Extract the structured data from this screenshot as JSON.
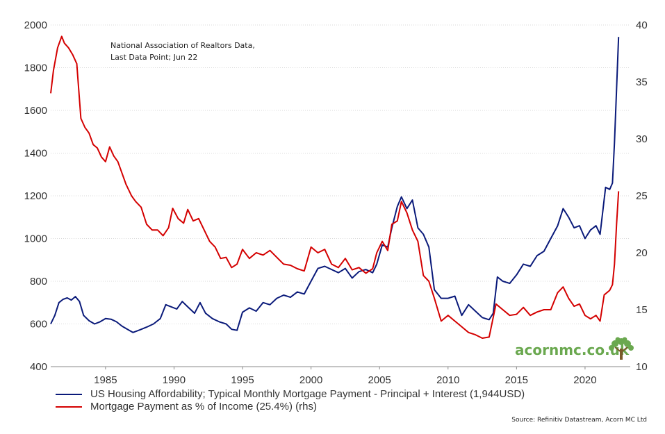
{
  "chart_data": {
    "type": "line",
    "annotation": [
      "National Association of Realtors Data,",
      "Last Data Point; Jun 22"
    ],
    "source": "Source: Refinitiv Datastream, Acorn MC Ltd",
    "xlim": [
      1981.0,
      2023.3
    ],
    "x_ticks": [
      "1985",
      "1990",
      "1995",
      "2000",
      "2005",
      "2010",
      "2015",
      "2020"
    ],
    "y_left": {
      "lim": [
        400,
        2000
      ],
      "ticks": [
        "400",
        "600",
        "800",
        "1000",
        "1200",
        "1400",
        "1600",
        "1800",
        "2000"
      ]
    },
    "y_right": {
      "lim": [
        10,
        40
      ],
      "ticks": [
        "10",
        "15",
        "20",
        "25",
        "30",
        "35",
        "40"
      ]
    },
    "grid": true,
    "legend_position": "bottom-left",
    "series": [
      {
        "name": "US Housing Affordability; Typical Monthly Mortgage Payment - Principal + Interest (1,944USD)",
        "axis": "left",
        "color": "#0a1a7a",
        "points": [
          [
            1981.0,
            600
          ],
          [
            1981.3,
            640
          ],
          [
            1981.6,
            700
          ],
          [
            1981.9,
            715
          ],
          [
            1982.2,
            722
          ],
          [
            1982.5,
            712
          ],
          [
            1982.8,
            728
          ],
          [
            1983.1,
            705
          ],
          [
            1983.4,
            640
          ],
          [
            1983.8,
            615
          ],
          [
            1984.2,
            600
          ],
          [
            1984.6,
            610
          ],
          [
            1985.0,
            625
          ],
          [
            1985.4,
            622
          ],
          [
            1985.8,
            610
          ],
          [
            1986.2,
            590
          ],
          [
            1986.6,
            575
          ],
          [
            1987.0,
            560
          ],
          [
            1987.5,
            572
          ],
          [
            1988.0,
            585
          ],
          [
            1988.5,
            600
          ],
          [
            1989.0,
            625
          ],
          [
            1989.4,
            690
          ],
          [
            1989.8,
            680
          ],
          [
            1990.2,
            670
          ],
          [
            1990.6,
            705
          ],
          [
            1991.0,
            680
          ],
          [
            1991.5,
            650
          ],
          [
            1991.9,
            700
          ],
          [
            1992.3,
            650
          ],
          [
            1992.8,
            625
          ],
          [
            1993.3,
            610
          ],
          [
            1993.8,
            600
          ],
          [
            1994.2,
            575
          ],
          [
            1994.6,
            570
          ],
          [
            1995.0,
            655
          ],
          [
            1995.5,
            675
          ],
          [
            1996.0,
            660
          ],
          [
            1996.5,
            700
          ],
          [
            1997.0,
            690
          ],
          [
            1997.5,
            720
          ],
          [
            1998.0,
            735
          ],
          [
            1998.5,
            725
          ],
          [
            1999.0,
            750
          ],
          [
            1999.5,
            740
          ],
          [
            2000.0,
            800
          ],
          [
            2000.5,
            860
          ],
          [
            2001.0,
            870
          ],
          [
            2001.5,
            855
          ],
          [
            2002.0,
            840
          ],
          [
            2002.5,
            860
          ],
          [
            2003.0,
            815
          ],
          [
            2003.5,
            845
          ],
          [
            2004.0,
            855
          ],
          [
            2004.5,
            840
          ],
          [
            2004.8,
            880
          ],
          [
            2005.2,
            970
          ],
          [
            2005.6,
            960
          ],
          [
            2005.9,
            1050
          ],
          [
            2006.3,
            1150
          ],
          [
            2006.6,
            1195
          ],
          [
            2007.0,
            1140
          ],
          [
            2007.4,
            1180
          ],
          [
            2007.8,
            1050
          ],
          [
            2008.2,
            1020
          ],
          [
            2008.6,
            960
          ],
          [
            2009.0,
            760
          ],
          [
            2009.5,
            720
          ],
          [
            2010.0,
            720
          ],
          [
            2010.5,
            730
          ],
          [
            2011.0,
            640
          ],
          [
            2011.5,
            690
          ],
          [
            2012.0,
            660
          ],
          [
            2012.5,
            630
          ],
          [
            2013.0,
            620
          ],
          [
            2013.3,
            650
          ],
          [
            2013.6,
            820
          ],
          [
            2014.0,
            800
          ],
          [
            2014.5,
            790
          ],
          [
            2015.0,
            830
          ],
          [
            2015.5,
            880
          ],
          [
            2016.0,
            870
          ],
          [
            2016.5,
            920
          ],
          [
            2017.0,
            940
          ],
          [
            2017.5,
            1000
          ],
          [
            2018.0,
            1060
          ],
          [
            2018.4,
            1140
          ],
          [
            2018.8,
            1100
          ],
          [
            2019.2,
            1050
          ],
          [
            2019.6,
            1060
          ],
          [
            2020.0,
            1000
          ],
          [
            2020.4,
            1040
          ],
          [
            2020.8,
            1060
          ],
          [
            2021.1,
            1020
          ],
          [
            2021.5,
            1240
          ],
          [
            2021.8,
            1230
          ],
          [
            2022.0,
            1260
          ],
          [
            2022.15,
            1450
          ],
          [
            2022.3,
            1700
          ],
          [
            2022.45,
            1944
          ]
        ]
      },
      {
        "name": "Mortgage Payment as % of Income (25.4%) (rhs)",
        "axis": "right",
        "color": "#d40000",
        "points": [
          [
            1981.0,
            34.0
          ],
          [
            1981.2,
            36.0
          ],
          [
            1981.5,
            38.0
          ],
          [
            1981.8,
            39.0
          ],
          [
            1982.0,
            38.4
          ],
          [
            1982.3,
            38.0
          ],
          [
            1982.6,
            37.4
          ],
          [
            1982.9,
            36.6
          ],
          [
            1983.2,
            31.8
          ],
          [
            1983.5,
            31.0
          ],
          [
            1983.8,
            30.5
          ],
          [
            1984.1,
            29.5
          ],
          [
            1984.4,
            29.2
          ],
          [
            1984.7,
            28.4
          ],
          [
            1985.0,
            28.0
          ],
          [
            1985.3,
            29.3
          ],
          [
            1985.6,
            28.5
          ],
          [
            1985.9,
            28.0
          ],
          [
            1986.2,
            27.0
          ],
          [
            1986.5,
            26.0
          ],
          [
            1986.9,
            25.0
          ],
          [
            1987.2,
            24.5
          ],
          [
            1987.6,
            24.0
          ],
          [
            1988.0,
            22.5
          ],
          [
            1988.4,
            22.0
          ],
          [
            1988.8,
            22.0
          ],
          [
            1989.2,
            21.5
          ],
          [
            1989.6,
            22.2
          ],
          [
            1989.9,
            23.9
          ],
          [
            1990.3,
            23.0
          ],
          [
            1990.7,
            22.6
          ],
          [
            1991.0,
            23.8
          ],
          [
            1991.4,
            22.8
          ],
          [
            1991.8,
            23.0
          ],
          [
            1992.2,
            22.0
          ],
          [
            1992.6,
            21.0
          ],
          [
            1993.0,
            20.5
          ],
          [
            1993.4,
            19.5
          ],
          [
            1993.8,
            19.6
          ],
          [
            1994.2,
            18.7
          ],
          [
            1994.6,
            19.0
          ],
          [
            1995.0,
            20.3
          ],
          [
            1995.5,
            19.5
          ],
          [
            1996.0,
            20.0
          ],
          [
            1996.5,
            19.8
          ],
          [
            1997.0,
            20.2
          ],
          [
            1997.5,
            19.6
          ],
          [
            1998.0,
            19.0
          ],
          [
            1998.5,
            18.9
          ],
          [
            1999.0,
            18.6
          ],
          [
            1999.5,
            18.4
          ],
          [
            2000.0,
            20.5
          ],
          [
            2000.5,
            20.0
          ],
          [
            2001.0,
            20.3
          ],
          [
            2001.5,
            19.0
          ],
          [
            2002.0,
            18.7
          ],
          [
            2002.5,
            19.5
          ],
          [
            2003.0,
            18.5
          ],
          [
            2003.5,
            18.7
          ],
          [
            2004.0,
            18.2
          ],
          [
            2004.5,
            18.6
          ],
          [
            2004.8,
            20.0
          ],
          [
            2005.2,
            21.0
          ],
          [
            2005.6,
            20.2
          ],
          [
            2005.9,
            22.5
          ],
          [
            2006.3,
            22.8
          ],
          [
            2006.6,
            24.5
          ],
          [
            2007.0,
            23.5
          ],
          [
            2007.4,
            22.0
          ],
          [
            2007.8,
            21.0
          ],
          [
            2008.2,
            18.0
          ],
          [
            2008.6,
            17.5
          ],
          [
            2009.0,
            16.0
          ],
          [
            2009.5,
            14.0
          ],
          [
            2010.0,
            14.5
          ],
          [
            2010.5,
            14.0
          ],
          [
            2011.0,
            13.5
          ],
          [
            2011.5,
            13.0
          ],
          [
            2012.0,
            12.8
          ],
          [
            2012.5,
            12.5
          ],
          [
            2013.0,
            12.6
          ],
          [
            2013.5,
            15.5
          ],
          [
            2014.0,
            15.0
          ],
          [
            2014.5,
            14.5
          ],
          [
            2015.0,
            14.6
          ],
          [
            2015.5,
            15.2
          ],
          [
            2016.0,
            14.5
          ],
          [
            2016.5,
            14.8
          ],
          [
            2017.0,
            15.0
          ],
          [
            2017.5,
            15.0
          ],
          [
            2018.0,
            16.5
          ],
          [
            2018.4,
            17.0
          ],
          [
            2018.8,
            16.0
          ],
          [
            2019.2,
            15.3
          ],
          [
            2019.6,
            15.5
          ],
          [
            2020.0,
            14.5
          ],
          [
            2020.4,
            14.2
          ],
          [
            2020.8,
            14.5
          ],
          [
            2021.1,
            14.0
          ],
          [
            2021.4,
            16.3
          ],
          [
            2021.8,
            16.7
          ],
          [
            2022.0,
            17.2
          ],
          [
            2022.15,
            19.0
          ],
          [
            2022.3,
            22.5
          ],
          [
            2022.45,
            25.4
          ]
        ]
      }
    ]
  },
  "brand": {
    "text": "acornmc.co.uk",
    "icon": "tree-icon"
  }
}
